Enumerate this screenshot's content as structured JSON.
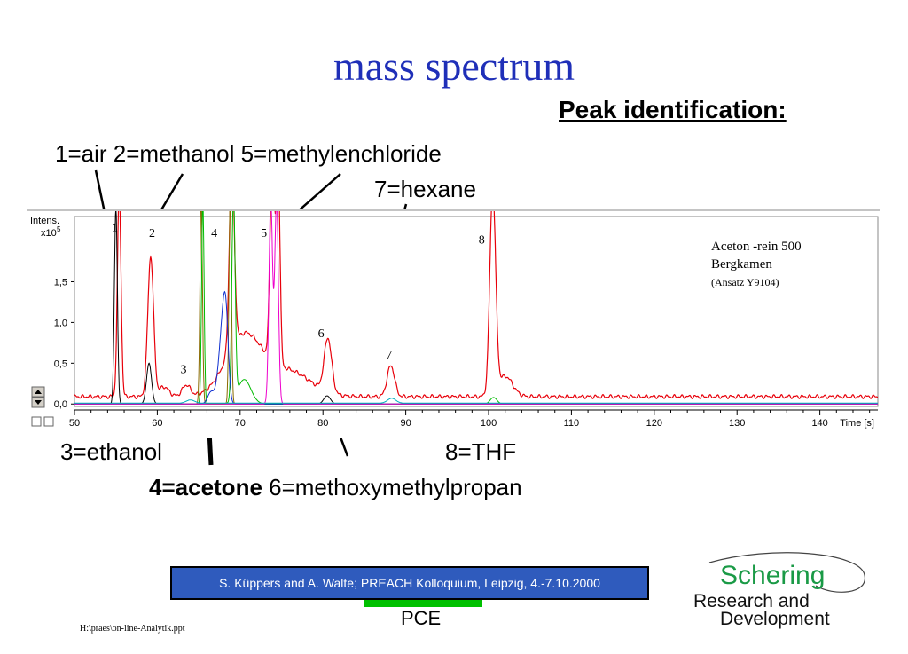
{
  "slide": {
    "title": "mass spectrum",
    "peak_heading": "Peak identification:"
  },
  "labels": {
    "line1": "1=air  2=methanol  5=methylenchloride",
    "line2": "7=hexane",
    "ethanol": "3=ethanol",
    "thf": "8=THF",
    "acetone_bold": "4=acetone",
    "methoxy": " 6=methoxymethylpropan"
  },
  "footer": {
    "citation": "S. Küppers and A. Walte; PREACH Kolloquium, Leipzig, 4.-7.10.2000",
    "pce": "PCE",
    "file_path": "H:\\praes\\on-line-Analytik.ppt",
    "logo_name": "Schering",
    "logo_line1": "Research and",
    "logo_line2": "Development"
  },
  "colors": {
    "title": "#1f2fb8",
    "footer_box": "#2f5bbd",
    "pce_bar": "#00c000",
    "logo_green": "#1a9a46"
  },
  "chart_data": {
    "type": "line",
    "ylabel_top": "Intens.",
    "ylabel_unit": "x10",
    "ylabel_exp": "5",
    "xlabel": "Time [s]",
    "xlim": [
      50,
      147
    ],
    "ylim": [
      -0.03,
      2.3
    ],
    "xticks": [
      50,
      60,
      70,
      80,
      90,
      100,
      110,
      120,
      130,
      140
    ],
    "yticks": [
      0.0,
      0.5,
      1.0,
      1.5
    ],
    "ytick_labels": [
      "0,0",
      "0,5",
      "1,0",
      "1,5"
    ],
    "sample_note": [
      "Aceton -rein 500",
      "Bergkamen",
      "(Ansatz Y9104)"
    ],
    "peak_labels": [
      {
        "text": "1",
        "x": 54.5,
        "y": 2.12
      },
      {
        "text": "2",
        "x": 59.0,
        "y": 2.05
      },
      {
        "text": "3",
        "x": 62.8,
        "y": 0.38
      },
      {
        "text": "4",
        "x": 66.5,
        "y": 2.05
      },
      {
        "text": "5",
        "x": 72.5,
        "y": 2.05
      },
      {
        "text": "6",
        "x": 79.4,
        "y": 0.82
      },
      {
        "text": "7",
        "x": 87.6,
        "y": 0.56
      },
      {
        "text": "8",
        "x": 98.8,
        "y": 1.97
      }
    ],
    "series": [
      {
        "color": "#e8000a",
        "base": 0.09,
        "peaks": [
          {
            "x": 55.4,
            "h": 2.5,
            "w": 0.22
          },
          {
            "x": 59.2,
            "h": 1.72,
            "w": 0.35
          },
          {
            "x": 60.8,
            "h": 0.12,
            "w": 0.6
          },
          {
            "x": 63.5,
            "h": 0.14,
            "w": 0.5
          },
          {
            "x": 69.0,
            "h": 2.3,
            "w": 0.3
          },
          {
            "x": 70.5,
            "h": 0.75,
            "w": 2.2
          },
          {
            "x": 73.9,
            "h": 2.5,
            "w": 0.28
          },
          {
            "x": 74.6,
            "h": 2.4,
            "w": 0.22
          },
          {
            "x": 76.0,
            "h": 0.3,
            "w": 2.6
          },
          {
            "x": 80.6,
            "h": 0.66,
            "w": 0.45
          },
          {
            "x": 88.2,
            "h": 0.38,
            "w": 0.45
          },
          {
            "x": 100.5,
            "h": 2.5,
            "w": 0.35
          },
          {
            "x": 102.0,
            "h": 0.25,
            "w": 0.9
          }
        ]
      },
      {
        "color": "#000000",
        "base": 0.0,
        "peaks": [
          {
            "x": 55.0,
            "h": 2.4,
            "w": 0.18
          },
          {
            "x": 59.0,
            "h": 0.5,
            "w": 0.3
          },
          {
            "x": 80.5,
            "h": 0.1,
            "w": 0.4
          }
        ]
      },
      {
        "color": "#8a6a00",
        "base": 0.0,
        "peaks": [
          {
            "x": 65.3,
            "h": 2.5,
            "w": 0.15
          },
          {
            "x": 68.8,
            "h": 2.5,
            "w": 0.15
          }
        ]
      },
      {
        "color": "#00bb00",
        "base": 0.0,
        "peaks": [
          {
            "x": 65.5,
            "h": 2.5,
            "w": 0.15
          },
          {
            "x": 69.2,
            "h": 2.5,
            "w": 0.2
          },
          {
            "x": 70.5,
            "h": 0.3,
            "w": 0.8
          },
          {
            "x": 100.6,
            "h": 0.08,
            "w": 0.4
          }
        ]
      },
      {
        "color": "#1030d0",
        "base": 0.0,
        "peaks": [
          {
            "x": 66.5,
            "h": 0.15,
            "w": 0.4
          },
          {
            "x": 67.5,
            "h": 0.4,
            "w": 0.35
          },
          {
            "x": 68.3,
            "h": 1.0,
            "w": 0.3
          },
          {
            "x": 67.9,
            "h": 0.6,
            "w": 0.3
          }
        ]
      },
      {
        "color": "#ee00cc",
        "base": 0.0,
        "peaks": [
          {
            "x": 73.7,
            "h": 2.5,
            "w": 0.22
          },
          {
            "x": 74.4,
            "h": 2.5,
            "w": 0.22
          }
        ]
      },
      {
        "color": "#00b0c0",
        "base": 0.01,
        "peaks": [
          {
            "x": 88.3,
            "h": 0.06,
            "w": 0.5
          },
          {
            "x": 64.0,
            "h": 0.04,
            "w": 0.5
          }
        ]
      }
    ]
  }
}
